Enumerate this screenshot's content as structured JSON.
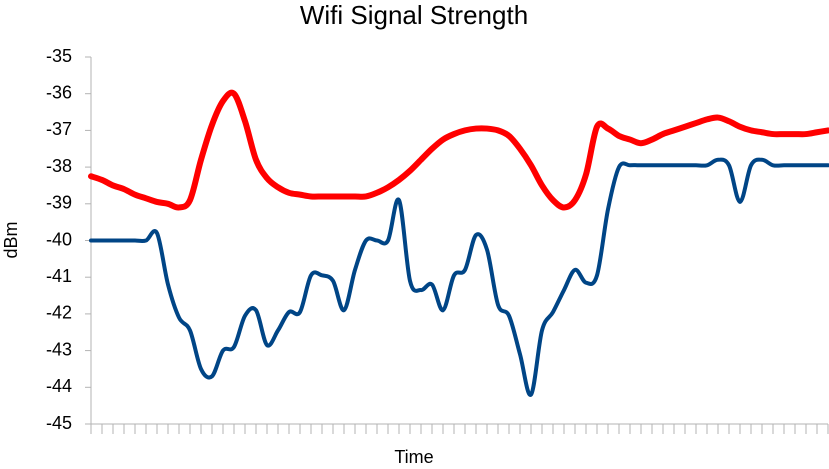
{
  "chart_data": {
    "type": "line",
    "title": "Wifi Signal Strength",
    "xlabel": "Time",
    "ylabel": "dBm",
    "categories": [
      null,
      null,
      null,
      null,
      null,
      null,
      null,
      null,
      null,
      null,
      null,
      null,
      null,
      null,
      null,
      null,
      null,
      null,
      null,
      null,
      null,
      null,
      null,
      null,
      null,
      null,
      null,
      null,
      null,
      null,
      null,
      null,
      null,
      null,
      null,
      null,
      null,
      null,
      null,
      null,
      null,
      null,
      null,
      null,
      null,
      null,
      null,
      null,
      null,
      null,
      null,
      null,
      null,
      null,
      null,
      null,
      null,
      null,
      null,
      null,
      null,
      null,
      null,
      null,
      null,
      null,
      null,
      null
    ],
    "series": [
      {
        "color": "#ff0000",
        "values": [
          -38.25,
          -38.35,
          -38.5,
          -38.6,
          -38.75,
          -38.85,
          -38.95,
          -39,
          -39.1,
          -38.9,
          -37.8,
          -36.85,
          -36.2,
          -36,
          -36.75,
          -37.8,
          -38.3,
          -38.55,
          -38.7,
          -38.75,
          -38.8,
          -38.8,
          -38.8,
          -38.8,
          -38.8,
          -38.8,
          -38.7,
          -38.55,
          -38.35,
          -38.1,
          -37.8,
          -37.5,
          -37.25,
          -37.1,
          -37,
          -36.95,
          -36.95,
          -37,
          -37.15,
          -37.5,
          -37.95,
          -38.5,
          -38.9,
          -39.1,
          -38.9,
          -38.2,
          -36.9,
          -36.95,
          -37.15,
          -37.25,
          -37.35,
          -37.25,
          -37.1,
          -37,
          -36.9,
          -36.8,
          -36.7,
          -36.65,
          -36.75,
          -36.9,
          -37,
          -37.05,
          -37.1,
          -37.1,
          -37.1,
          -37.1,
          -37.05,
          -37
        ]
      },
      {
        "color": "#004586",
        "values": [
          -40,
          -40,
          -40,
          -40,
          -40,
          -40,
          -39.8,
          -41.2,
          -42.1,
          -42.45,
          -43.5,
          -43.7,
          -43,
          -42.9,
          -42.05,
          -41.9,
          -42.85,
          -42.45,
          -41.95,
          -41.95,
          -40.95,
          -40.95,
          -41.1,
          -41.9,
          -40.8,
          -40,
          -40,
          -40,
          -38.9,
          -41.1,
          -41.35,
          -41.2,
          -41.9,
          -40.95,
          -40.8,
          -39.85,
          -40.25,
          -41.75,
          -42.05,
          -43.1,
          -44.2,
          -42.45,
          -41.95,
          -41.35,
          -40.8,
          -41.15,
          -40.95,
          -39.15,
          -38,
          -37.95,
          -37.95,
          -37.95,
          -37.95,
          -37.95,
          -37.95,
          -37.95,
          -37.95,
          -37.8,
          -37.95,
          -38.95,
          -37.95,
          -37.8,
          -37.95,
          -37.95,
          -37.95,
          -37.95,
          -37.95,
          -37.95
        ]
      }
    ],
    "ylim": [
      -45,
      -35
    ],
    "yticks": [
      -35,
      -36,
      -37,
      -38,
      -39,
      -40,
      -41,
      -42,
      -43,
      -44,
      -45
    ],
    "grid": false
  }
}
